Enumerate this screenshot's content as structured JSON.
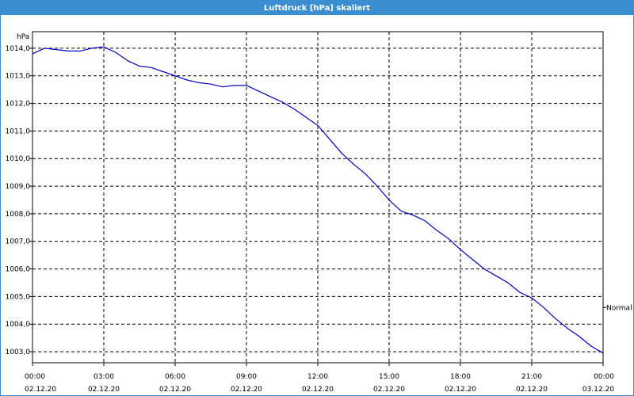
{
  "window": {
    "title": "Luftdruck [hPa] skaliert"
  },
  "chart_data": {
    "type": "line",
    "title": "Luftdruck [hPa] skaliert",
    "ylabel": "hPa",
    "xlabel": "",
    "ylim": [
      1002.6,
      1014.6
    ],
    "xlim": [
      "02.12.20 00:00",
      "03.12.20 00:00"
    ],
    "grid": true,
    "y_ticks": [
      "1014,0",
      "1013,0",
      "1012,0",
      "1011,0",
      "1010,0",
      "1009,0",
      "1008,0",
      "1007,0",
      "1006,0",
      "1005,0",
      "1004,0",
      "1003,0"
    ],
    "x_ticks": [
      {
        "time": "00:00",
        "date": "02.12.20"
      },
      {
        "time": "03:00",
        "date": "02.12.20"
      },
      {
        "time": "06:00",
        "date": "02.12.20"
      },
      {
        "time": "09:00",
        "date": "02.12.20"
      },
      {
        "time": "12:00",
        "date": "02.12.20"
      },
      {
        "time": "15:00",
        "date": "02.12.20"
      },
      {
        "time": "18:00",
        "date": "02.12.20"
      },
      {
        "time": "21:00",
        "date": "02.12.20"
      },
      {
        "time": "00:00",
        "date": "03.12.20"
      }
    ],
    "series": [
      {
        "name": "Normal",
        "color": "#0000c8",
        "x": [
          "02.12.20 00:00",
          "02.12.20 00:30",
          "02.12.20 01:00",
          "02.12.20 01:30",
          "02.12.20 02:00",
          "02.12.20 02:30",
          "02.12.20 03:00",
          "02.12.20 03:30",
          "02.12.20 04:00",
          "02.12.20 04:30",
          "02.12.20 05:00",
          "02.12.20 05:30",
          "02.12.20 06:00",
          "02.12.20 06:30",
          "02.12.20 07:00",
          "02.12.20 07:30",
          "02.12.20 08:00",
          "02.12.20 08:30",
          "02.12.20 09:00",
          "02.12.20 09:30",
          "02.12.20 10:00",
          "02.12.20 10:30",
          "02.12.20 11:00",
          "02.12.20 11:30",
          "02.12.20 12:00",
          "02.12.20 12:30",
          "02.12.20 13:00",
          "02.12.20 13:30",
          "02.12.20 14:00",
          "02.12.20 14:30",
          "02.12.20 15:00",
          "02.12.20 15:30",
          "02.12.20 16:00",
          "02.12.20 16:30",
          "02.12.20 17:00",
          "02.12.20 17:30",
          "02.12.20 18:00",
          "02.12.20 18:30",
          "02.12.20 19:00",
          "02.12.20 19:30",
          "02.12.20 20:00",
          "02.12.20 20:30",
          "02.12.20 21:00",
          "02.12.20 21:30",
          "02.12.20 22:00",
          "02.12.20 22:30",
          "02.12.20 23:00",
          "02.12.20 23:30",
          "03.12.20 00:00"
        ],
        "values": [
          1013.8,
          1014.0,
          1013.95,
          1013.9,
          1013.9,
          1014.0,
          1014.05,
          1013.85,
          1013.55,
          1013.35,
          1013.3,
          1013.15,
          1013.0,
          1012.85,
          1012.75,
          1012.7,
          1012.6,
          1012.65,
          1012.65,
          1012.45,
          1012.25,
          1012.05,
          1011.8,
          1011.5,
          1011.2,
          1010.7,
          1010.2,
          1009.8,
          1009.45,
          1009.0,
          1008.5,
          1008.1,
          1007.95,
          1007.75,
          1007.4,
          1007.1,
          1006.7,
          1006.35,
          1006.0,
          1005.75,
          1005.5,
          1005.15,
          1004.95,
          1004.6,
          1004.2,
          1003.85,
          1003.55,
          1003.2,
          1002.95
        ]
      }
    ]
  }
}
